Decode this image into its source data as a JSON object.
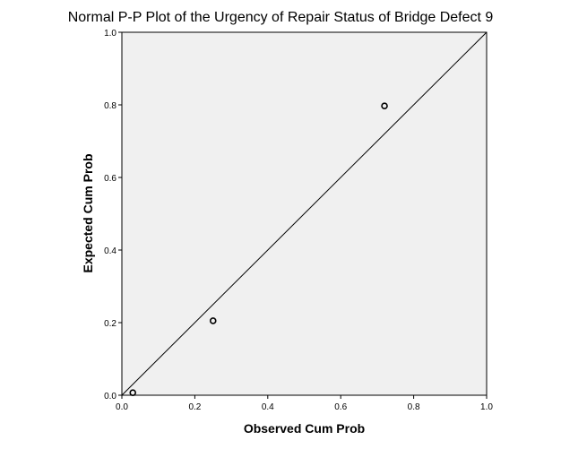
{
  "chart_data": {
    "type": "scatter",
    "title": "Normal P-P Plot of the Urgency of Repair Status of Bridge Defect 9",
    "xlabel": "Observed Cum Prob",
    "ylabel": "Expected Cum Prob",
    "xlim": [
      0.0,
      1.0
    ],
    "ylim": [
      0.0,
      1.0
    ],
    "xticks": [
      "0.0",
      "0.2",
      "0.4",
      "0.6",
      "0.8",
      "1.0"
    ],
    "yticks": [
      "0.0",
      "0.2",
      "0.4",
      "0.6",
      "0.8",
      "1.0"
    ],
    "points": [
      {
        "x": 0.03,
        "y": 0.007
      },
      {
        "x": 0.25,
        "y": 0.205
      },
      {
        "x": 0.72,
        "y": 0.797
      }
    ],
    "reference_line": {
      "from": [
        0.0,
        0.0
      ],
      "to": [
        1.0,
        1.0
      ]
    },
    "grid": false,
    "colors": {
      "plot_background": "#f0f0f0",
      "axis": "#000000",
      "marker": "#000000"
    }
  }
}
